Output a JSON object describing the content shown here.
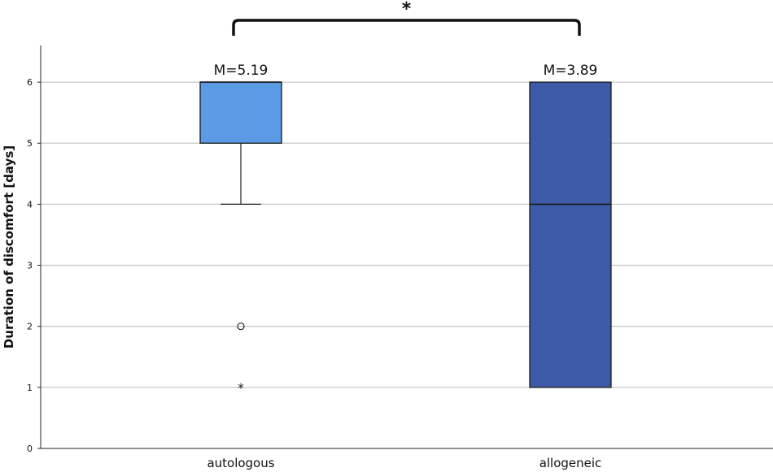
{
  "chart_data": {
    "type": "box",
    "ylabel": "Duration of discomfort [days]",
    "xlabel": "",
    "ylim": [
      0,
      6.6
    ],
    "yticks": [
      0,
      1,
      2,
      3,
      4,
      5,
      6
    ],
    "grid": true,
    "categories": [
      "autologous",
      "allogeneic"
    ],
    "boxes": [
      {
        "category": "autologous",
        "whisker_low": 4,
        "q1": 5,
        "median": 6,
        "q3": 6,
        "whisker_high": 6,
        "outliers": [
          2
        ],
        "extremes": [
          1
        ],
        "mean_label": "M=5.19",
        "color": "#5b9be6"
      },
      {
        "category": "allogeneic",
        "whisker_low": 1,
        "q1": 1,
        "median": 4,
        "q3": 6,
        "whisker_high": 6,
        "outliers": [],
        "extremes": [],
        "mean_label": "M=3.89",
        "color": "#3d5aa8"
      }
    ],
    "significance": {
      "between": [
        "autologous",
        "allogeneic"
      ],
      "label": "*"
    }
  }
}
